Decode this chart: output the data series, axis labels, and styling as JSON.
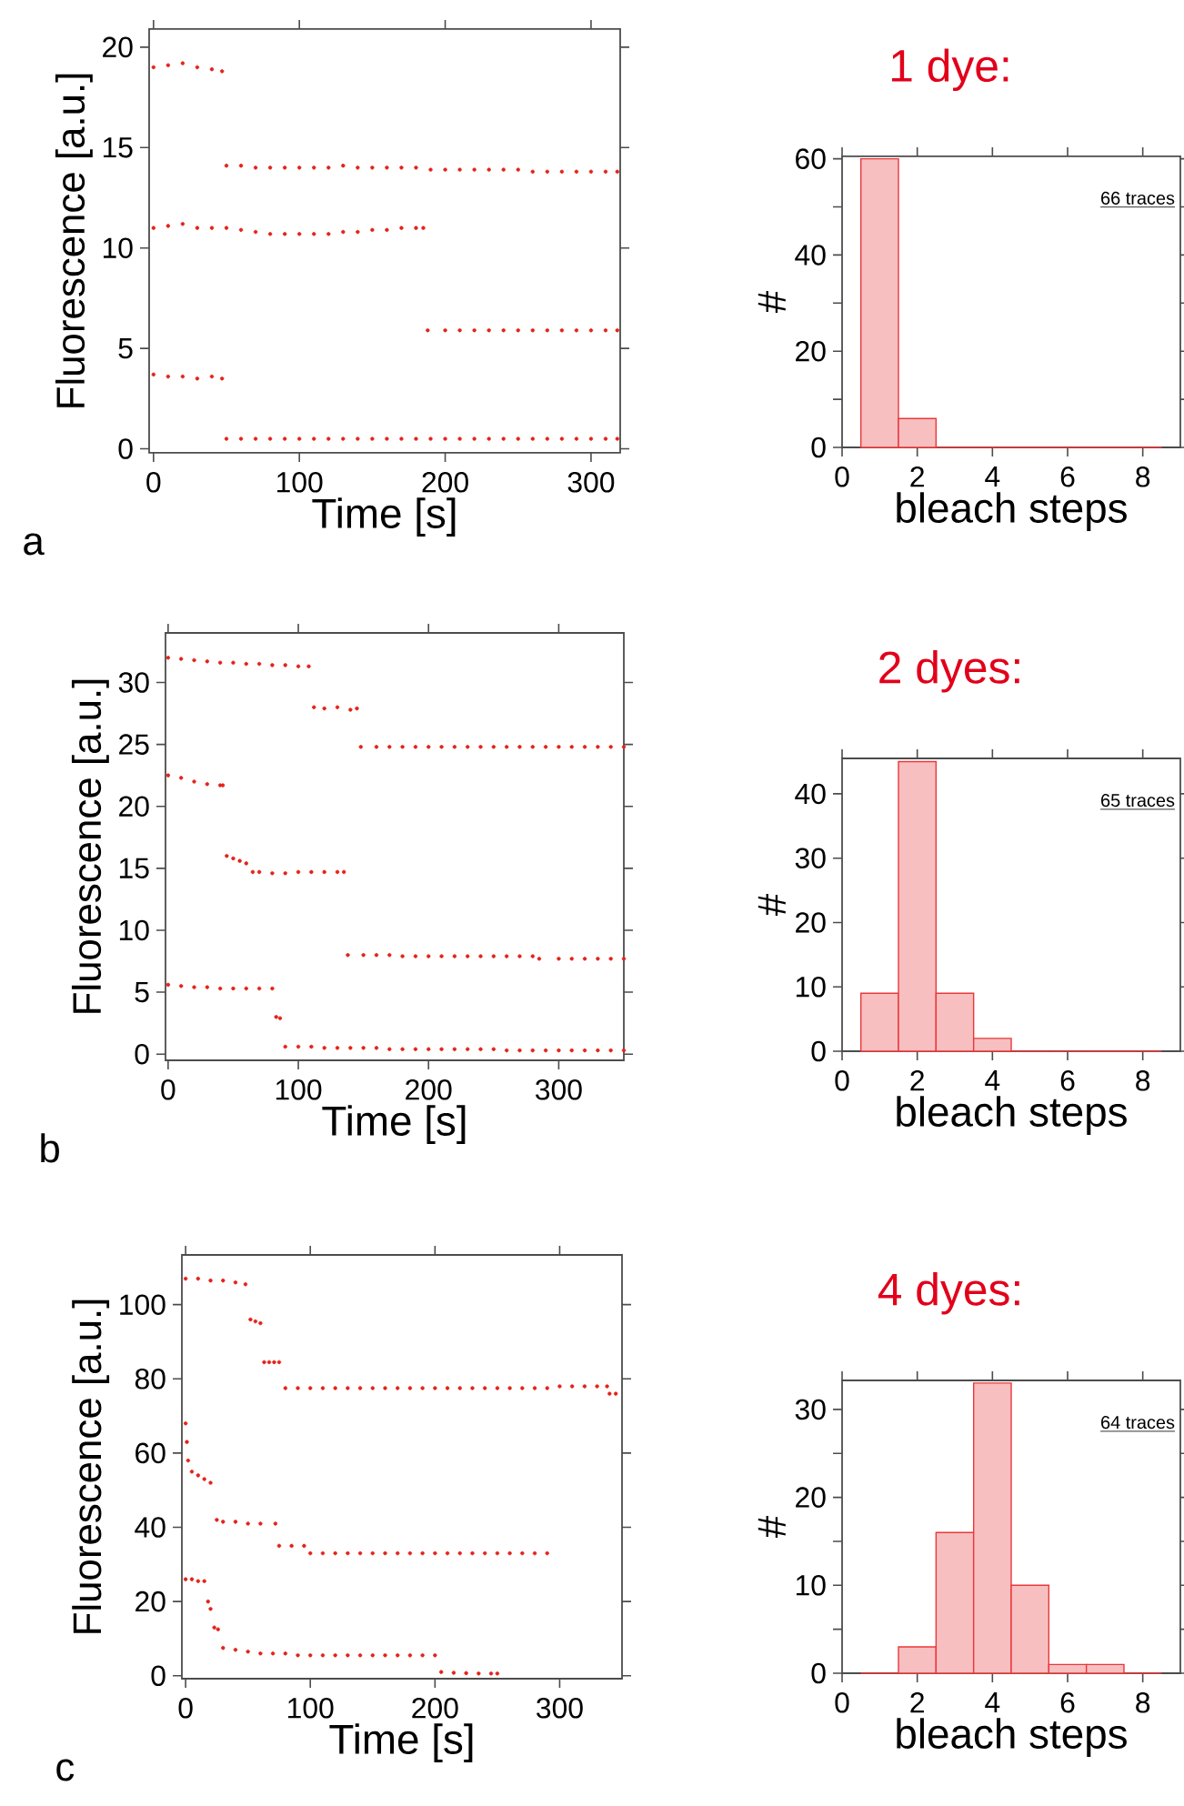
{
  "chart_data": [
    {
      "type": "scatter",
      "xlabel": "Time [s]",
      "ylabel": "Fluorescence [a.u.]",
      "xlim": [
        -3,
        320
      ],
      "ylim": [
        -0.2,
        20.9
      ],
      "xticks": [
        0,
        100,
        200,
        300
      ],
      "yticks": [
        0,
        5,
        10,
        15,
        20
      ],
      "marker": "circle",
      "annotations": [
        "a"
      ],
      "series": [
        {
          "color": "#e32219",
          "x": [
            0,
            10,
            20,
            30,
            40,
            47,
            50,
            60,
            70,
            80,
            90,
            100,
            110,
            120,
            130,
            140,
            150,
            160,
            170,
            180,
            190,
            200,
            210,
            220,
            230,
            240,
            250,
            260,
            270,
            280,
            290,
            300,
            310,
            318
          ],
          "values": [
            19,
            19.1,
            19.2,
            19,
            18.9,
            18.8,
            14.1,
            14.1,
            14,
            14,
            14,
            14,
            14,
            14,
            14.1,
            14,
            14,
            14,
            14,
            14,
            13.9,
            13.9,
            13.9,
            13.9,
            13.9,
            13.9,
            13.9,
            13.8,
            13.8,
            13.8,
            13.8,
            13.8,
            13.8,
            13.8
          ]
        },
        {
          "color": "#e32219",
          "x": [
            0,
            10,
            20,
            30,
            40,
            50,
            60,
            70,
            80,
            90,
            100,
            110,
            120,
            130,
            140,
            150,
            160,
            170,
            180,
            185,
            188,
            200,
            210,
            220,
            230,
            240,
            250,
            260,
            270,
            280,
            290,
            300,
            310,
            318
          ],
          "values": [
            11,
            11.1,
            11.2,
            11,
            11,
            11,
            10.9,
            10.8,
            10.7,
            10.7,
            10.7,
            10.7,
            10.7,
            10.8,
            10.8,
            10.9,
            10.9,
            11,
            11,
            11,
            5.9,
            5.9,
            5.9,
            5.9,
            5.9,
            5.9,
            5.9,
            5.9,
            5.9,
            5.9,
            5.9,
            5.9,
            5.9,
            5.9
          ]
        },
        {
          "color": "#e32219",
          "x": [
            0,
            10,
            20,
            30,
            40,
            47,
            50,
            60,
            70,
            80,
            90,
            100,
            110,
            120,
            130,
            140,
            150,
            160,
            170,
            180,
            190,
            200,
            210,
            220,
            230,
            240,
            250,
            260,
            270,
            280,
            290,
            300,
            310,
            318
          ],
          "values": [
            3.7,
            3.6,
            3.6,
            3.5,
            3.6,
            3.5,
            0.5,
            0.5,
            0.5,
            0.5,
            0.5,
            0.5,
            0.5,
            0.5,
            0.5,
            0.5,
            0.5,
            0.5,
            0.5,
            0.5,
            0.5,
            0.5,
            0.5,
            0.5,
            0.5,
            0.5,
            0.5,
            0.5,
            0.5,
            0.5,
            0.5,
            0.5,
            0.5,
            0.5
          ]
        }
      ]
    },
    {
      "type": "histogram",
      "title": "1 dye:",
      "xlabel": "bleach steps",
      "ylabel": "#",
      "xlim": [
        0,
        9
      ],
      "ylim": [
        0,
        60.5
      ],
      "xticks": [
        0,
        2,
        4,
        6,
        8
      ],
      "yticks": [
        0,
        {
          "value": 10,
          "label": null
        },
        20,
        {
          "value": 30,
          "label": null
        },
        40,
        {
          "value": 50,
          "label": null
        },
        60
      ],
      "color": "#e8383a",
      "annotations": [
        "66 traces"
      ],
      "bins": [
        0.5,
        1.5,
        2.5,
        3.5,
        4.5,
        5.5,
        6.5,
        7.5,
        8.5
      ],
      "values": [
        60,
        6,
        0,
        0,
        0,
        0,
        0,
        0
      ]
    },
    {
      "type": "scatter",
      "xlabel": "Time [s]",
      "ylabel": "Fluorescence [a.u.]",
      "xlim": [
        -2,
        350
      ],
      "ylim": [
        -0.5,
        34
      ],
      "xticks": [
        0,
        100,
        200,
        300
      ],
      "yticks": [
        0,
        5,
        10,
        15,
        20,
        25,
        30
      ],
      "marker": "circle",
      "annotations": [
        "b"
      ],
      "series": [
        {
          "color": "#e32219",
          "x": [
            0,
            10,
            20,
            30,
            40,
            50,
            60,
            70,
            80,
            90,
            100,
            108,
            112,
            120,
            130,
            140,
            145,
            148,
            160,
            170,
            180,
            190,
            200,
            210,
            220,
            230,
            240,
            250,
            260,
            270,
            280,
            290,
            300,
            310,
            320,
            330,
            340,
            350
          ],
          "values": [
            32,
            31.9,
            31.8,
            31.7,
            31.6,
            31.6,
            31.5,
            31.5,
            31.4,
            31.4,
            31.3,
            31.3,
            28,
            27.9,
            28,
            27.8,
            27.9,
            24.8,
            24.8,
            24.8,
            24.8,
            24.8,
            24.8,
            24.8,
            24.8,
            24.8,
            24.8,
            24.8,
            24.8,
            24.8,
            24.8,
            24.8,
            24.8,
            24.8,
            24.8,
            24.8,
            24.8,
            24.8
          ]
        },
        {
          "color": "#e32219",
          "x": [
            0,
            10,
            20,
            30,
            40,
            42,
            45,
            50,
            55,
            60,
            65,
            70,
            80,
            90,
            100,
            110,
            120,
            130,
            135,
            138,
            150,
            160,
            170,
            180,
            190,
            200,
            210,
            220,
            230,
            240,
            250,
            260,
            270,
            280,
            285,
            300,
            310,
            320,
            330,
            340,
            350
          ],
          "values": [
            22.5,
            22.3,
            22,
            21.8,
            21.7,
            21.7,
            16,
            15.8,
            15.6,
            15.4,
            14.7,
            14.7,
            14.6,
            14.6,
            14.7,
            14.7,
            14.7,
            14.7,
            14.7,
            8,
            8,
            8,
            8,
            7.9,
            7.9,
            7.9,
            7.9,
            7.9,
            7.9,
            7.9,
            7.9,
            7.9,
            7.9,
            7.9,
            7.7,
            7.7,
            7.7,
            7.7,
            7.7,
            7.7,
            7.7
          ]
        },
        {
          "color": "#e32219",
          "x": [
            0,
            10,
            20,
            30,
            40,
            50,
            60,
            70,
            80,
            83,
            86,
            90,
            100,
            110,
            120,
            130,
            140,
            150,
            160,
            170,
            180,
            190,
            200,
            210,
            220,
            230,
            240,
            250,
            260,
            270,
            280,
            290,
            300,
            310,
            320,
            330,
            340,
            350
          ],
          "values": [
            5.6,
            5.5,
            5.4,
            5.4,
            5.3,
            5.3,
            5.3,
            5.3,
            5.3,
            3,
            2.9,
            0.6,
            0.6,
            0.6,
            0.5,
            0.5,
            0.5,
            0.5,
            0.5,
            0.4,
            0.4,
            0.4,
            0.4,
            0.4,
            0.4,
            0.4,
            0.4,
            0.4,
            0.3,
            0.3,
            0.3,
            0.3,
            0.3,
            0.3,
            0.3,
            0.3,
            0.3,
            0.3
          ]
        }
      ]
    },
    {
      "type": "histogram",
      "title": "2 dyes:",
      "xlabel": "bleach steps",
      "ylabel": "#",
      "xlim": [
        0,
        9
      ],
      "ylim": [
        0,
        45.5
      ],
      "xticks": [
        0,
        2,
        4,
        6,
        8
      ],
      "yticks": [
        0,
        10,
        20,
        30,
        40
      ],
      "color": "#e8383a",
      "annotations": [
        "65 traces"
      ],
      "bins": [
        0.5,
        1.5,
        2.5,
        3.5,
        4.5,
        5.5,
        6.5,
        7.5,
        8.5
      ],
      "values": [
        9,
        45,
        9,
        2,
        0,
        0,
        0,
        0
      ]
    },
    {
      "type": "scatter",
      "xlabel": "Time [s]",
      "ylabel": "Fluorescence [a.u.]",
      "xlim": [
        -3,
        350
      ],
      "ylim": [
        -0.8,
        113.4
      ],
      "xticks": [
        0,
        100,
        200,
        300
      ],
      "yticks": [
        0,
        20,
        40,
        60,
        80,
        100
      ],
      "marker": "circle",
      "annotations": [
        "c"
      ],
      "series": [
        {
          "color": "#e32219",
          "x": [
            0,
            10,
            20,
            30,
            40,
            48,
            52,
            56,
            60,
            63,
            67,
            71,
            75,
            80,
            90,
            100,
            110,
            120,
            130,
            140,
            150,
            160,
            170,
            180,
            190,
            200,
            210,
            220,
            230,
            240,
            250,
            260,
            270,
            280,
            290,
            300,
            310,
            320,
            330,
            338,
            340,
            345
          ],
          "values": [
            107,
            107,
            106.5,
            106.5,
            106,
            105.5,
            96,
            95.5,
            95,
            84.5,
            84.5,
            84.5,
            84.5,
            77.5,
            77.5,
            77.5,
            77.5,
            77.5,
            77.5,
            77.5,
            77.5,
            77.5,
            77.5,
            77.5,
            77.5,
            77.5,
            77.5,
            77.5,
            77.5,
            77.5,
            77.5,
            77.5,
            77.5,
            77.5,
            77.5,
            78,
            78,
            78,
            78,
            78,
            76,
            76
          ]
        },
        {
          "color": "#e32219",
          "x": [
            0,
            1,
            2,
            5,
            10,
            15,
            20,
            25,
            30,
            40,
            50,
            60,
            72,
            75,
            85,
            95,
            100,
            110,
            120,
            130,
            140,
            150,
            160,
            170,
            180,
            190,
            200,
            210,
            220,
            230,
            240,
            250,
            260,
            270,
            280,
            290
          ],
          "values": [
            68,
            63,
            58,
            55,
            54,
            53,
            52,
            42,
            41.5,
            41.5,
            41,
            41,
            41,
            35,
            35,
            35,
            33,
            33,
            33,
            33,
            33,
            33,
            33,
            33,
            33,
            33,
            33,
            33,
            33,
            33,
            33,
            33,
            33,
            33,
            33,
            33
          ]
        },
        {
          "color": "#e32219",
          "x": [
            0,
            5,
            10,
            15,
            18,
            20,
            23,
            26,
            30,
            40,
            50,
            60,
            70,
            80,
            90,
            100,
            110,
            120,
            130,
            140,
            150,
            160,
            170,
            180,
            190,
            200,
            205,
            215,
            225,
            235,
            245,
            250
          ],
          "values": [
            26,
            26,
            25.5,
            25.5,
            20,
            18,
            13,
            12.5,
            7.5,
            7,
            6.5,
            6,
            6,
            6,
            5.5,
            5.5,
            5.5,
            5.5,
            5.5,
            5.5,
            5.5,
            5.5,
            5.5,
            5.5,
            5.5,
            5.5,
            1,
            0.8,
            0.7,
            0.6,
            0.6,
            0.6
          ]
        }
      ]
    },
    {
      "type": "histogram",
      "title": "4 dyes:",
      "xlabel": "bleach steps",
      "ylabel": "#",
      "xlim": [
        0,
        9
      ],
      "ylim": [
        0,
        33.3
      ],
      "xticks": [
        0,
        2,
        4,
        6,
        8
      ],
      "yticks": [
        0,
        {
          "value": 5,
          "label": null
        },
        10,
        {
          "value": 15,
          "label": null
        },
        20,
        {
          "value": 25,
          "label": null
        },
        30
      ],
      "color": "#e8383a",
      "annotations": [
        "64 traces"
      ],
      "bins": [
        0.5,
        1.5,
        2.5,
        3.5,
        4.5,
        5.5,
        6.5,
        7.5,
        8.5
      ],
      "values": [
        0,
        3,
        16,
        33,
        10,
        1,
        1,
        0
      ]
    }
  ]
}
